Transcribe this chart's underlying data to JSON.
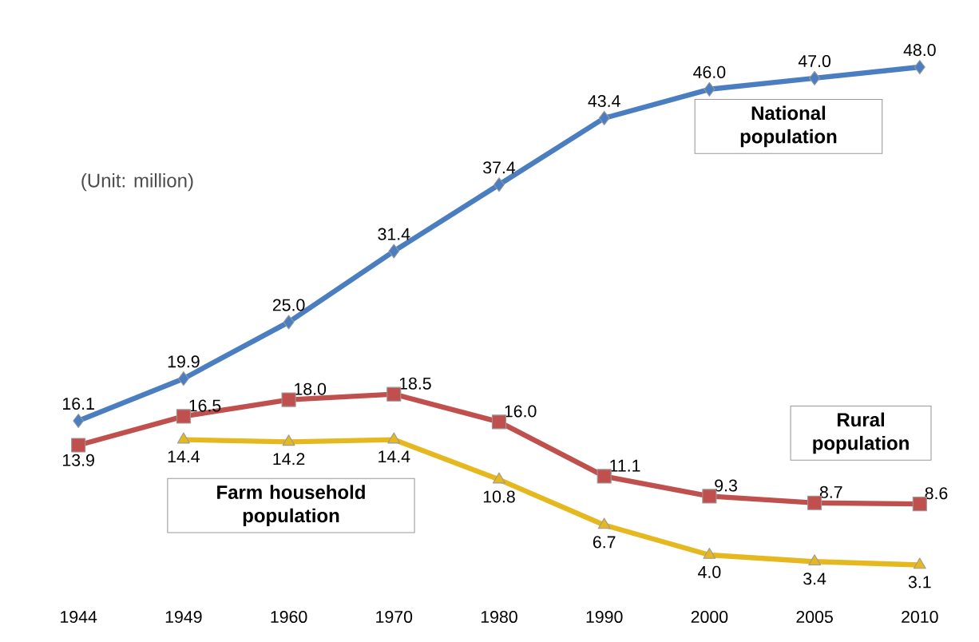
{
  "chart_data": {
    "type": "line",
    "categories": [
      "1944",
      "1949",
      "1960",
      "1970",
      "1980",
      "1990",
      "2000",
      "2005",
      "2010"
    ],
    "series": [
      {
        "name": "National population",
        "color": "#4a7ec0",
        "marker": "diamond",
        "values": [
          16.1,
          19.9,
          25.0,
          31.4,
          37.4,
          43.4,
          46.0,
          47.0,
          48.0
        ],
        "value_labels": [
          "16.1",
          "19.9",
          "25.0",
          "31.4",
          "37.4",
          "43.4",
          "46.0",
          "47.0",
          "48.0"
        ]
      },
      {
        "name": "Rural population",
        "color": "#c0504d",
        "marker": "square",
        "values": [
          13.9,
          16.5,
          18.0,
          18.5,
          16.0,
          11.1,
          9.3,
          8.7,
          8.6
        ],
        "value_labels": [
          "13.9",
          "16.5",
          "18.0",
          "18.5",
          "16.0",
          "11.1",
          "9.3",
          "8.7",
          "8.6"
        ]
      },
      {
        "name": "Farm household population",
        "color": "#e6b820",
        "marker": "triangle",
        "values": [
          null,
          14.4,
          14.2,
          14.4,
          10.8,
          6.7,
          4.0,
          3.4,
          3.1
        ],
        "value_labels": [
          null,
          "14.4",
          "14.2",
          "14.4",
          "10.8",
          "6.7",
          "4.0",
          "3.4",
          "3.1"
        ]
      }
    ],
    "annotations": [
      "(Unit: million)"
    ],
    "tick_labels": "x",
    "line_style": "solid"
  }
}
